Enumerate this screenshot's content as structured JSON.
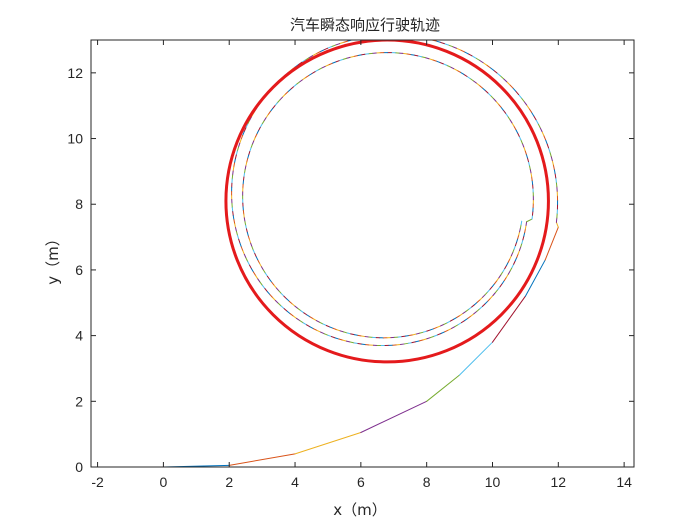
{
  "chart_data": {
    "type": "line",
    "title": "汽车瞬态响应行驶轨迹",
    "xlabel": "x（m）",
    "ylabel": "y（m）",
    "xlim": [
      -2.2,
      14.3
    ],
    "ylim": [
      0,
      13
    ],
    "xticks": [
      -2,
      0,
      2,
      4,
      6,
      8,
      10,
      12,
      14
    ],
    "yticks": [
      0,
      2,
      4,
      6,
      8,
      10,
      12
    ],
    "grid": false,
    "legend": "none",
    "series": [
      {
        "kind": "spiral-trajectory",
        "start": [
          0,
          0
        ],
        "transition_x": [
          0,
          2,
          4,
          6,
          8,
          9,
          10,
          11,
          11.6,
          12.0
        ],
        "transition_y": [
          0,
          0.05,
          0.4,
          1.05,
          2.0,
          2.8,
          3.8,
          5.2,
          6.3,
          7.3
        ],
        "outer_loop": {
          "center": [
            6.8,
            8.2
          ],
          "radius_start": 5.2,
          "radius_end": 4.3
        },
        "inner_loop": {
          "center": [
            6.75,
            8.2
          ],
          "radius_start": 4.5,
          "radius_end": 4.2
        },
        "colors": [
          "#0072bd",
          "#d95319",
          "#edb120",
          "#7e2f8e",
          "#77ac30",
          "#4dbeee",
          "#a2142f"
        ]
      },
      {
        "kind": "steady-state-circle",
        "center": [
          6.8,
          8.1
        ],
        "radius": 4.9,
        "color": "#e41a1c"
      }
    ]
  }
}
